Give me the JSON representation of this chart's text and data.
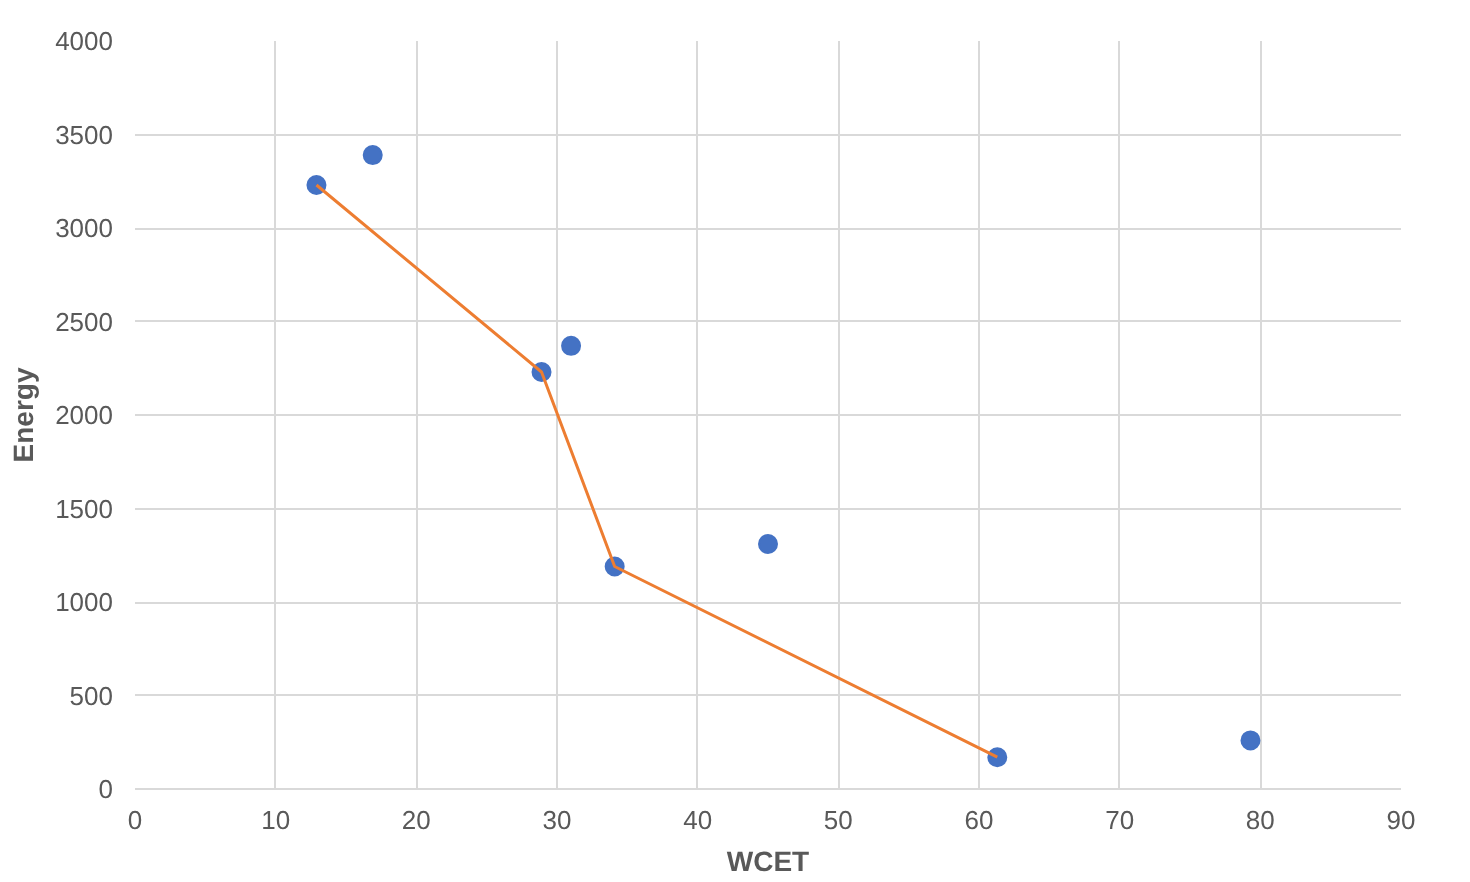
{
  "chart_data": {
    "type": "scatter",
    "xlabel": "WCET",
    "ylabel": "Energy",
    "xlim": [
      0,
      90
    ],
    "xticks": [
      0,
      10,
      20,
      30,
      40,
      50,
      60,
      70,
      80,
      90
    ],
    "ylim": [
      0,
      4000
    ],
    "yticks": [
      0,
      500,
      1000,
      1500,
      2000,
      2500,
      3000,
      3500,
      4000
    ],
    "grid": true,
    "marker": "circle",
    "series": [
      {
        "color": "#4472c4",
        "x": [
          12.9,
          16.9,
          28.9,
          31.0,
          34.1,
          45.0,
          61.3,
          79.3
        ],
        "values": [
          3230,
          3390,
          2230,
          2370,
          1190,
          1310,
          170,
          260
        ]
      },
      {
        "type": "line",
        "color": "#ed7d31",
        "marker": "none",
        "x": [
          12.9,
          28.9,
          34.1,
          61.3
        ],
        "values": [
          3230,
          2230,
          1190,
          170
        ]
      }
    ]
  }
}
